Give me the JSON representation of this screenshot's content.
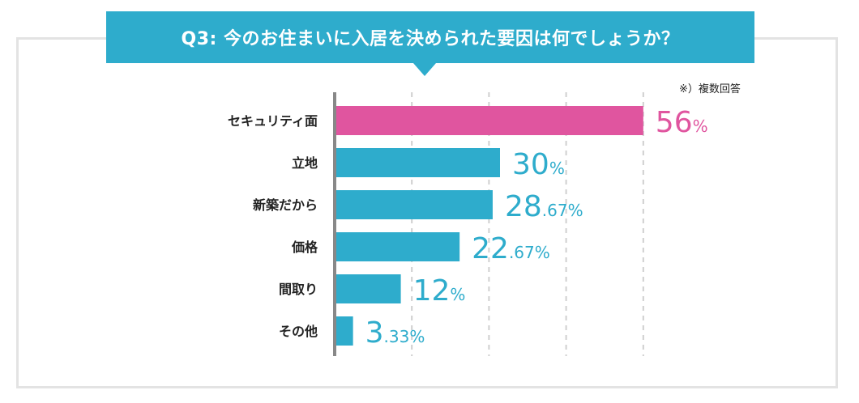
{
  "header": {
    "title": "Q3: 今のお住まいに入居を決められた要因は何でしょうか？"
  },
  "note": "※）複数回答",
  "chart_data": {
    "type": "bar",
    "orientation": "horizontal",
    "categories": [
      "セキュリティ面",
      "立地",
      "新築だから",
      "価格",
      "間取り",
      "その他"
    ],
    "values": [
      56,
      30,
      28.67,
      22.67,
      12,
      3.33
    ],
    "value_labels": [
      {
        "main": "56",
        "sub": "%"
      },
      {
        "main": "30",
        "sub": "%"
      },
      {
        "main": "28",
        "sub": ".67%"
      },
      {
        "main": "22",
        "sub": ".67%"
      },
      {
        "main": "12",
        "sub": "%"
      },
      {
        "main": "3",
        "sub": ".33%"
      }
    ],
    "unit": "%",
    "xlim": [
      0,
      60
    ],
    "grid": true,
    "highlight_index": 0,
    "colors": {
      "bar": "#2eaccc",
      "highlight": "#e0559f",
      "axis": "#888888",
      "grid": "#cfcfcf"
    }
  }
}
